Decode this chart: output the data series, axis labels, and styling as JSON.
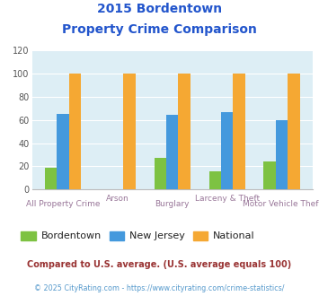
{
  "title_line1": "2015 Bordentown",
  "title_line2": "Property Crime Comparison",
  "categories": [
    "All Property Crime",
    "Arson",
    "Burglary",
    "Larceny & Theft",
    "Motor Vehicle Theft"
  ],
  "bordentown": [
    19,
    0,
    27,
    16,
    24
  ],
  "new_jersey": [
    65,
    0,
    64,
    67,
    60
  ],
  "national": [
    100,
    100,
    100,
    100,
    100
  ],
  "bar_colors": {
    "bordentown": "#7dc242",
    "new_jersey": "#4499dd",
    "national": "#f5a833"
  },
  "ylim": [
    0,
    120
  ],
  "yticks": [
    0,
    20,
    40,
    60,
    80,
    100,
    120
  ],
  "legend_labels": [
    "Bordentown",
    "New Jersey",
    "National"
  ],
  "footnote1": "Compared to U.S. average. (U.S. average equals 100)",
  "footnote2": "© 2025 CityRating.com - https://www.cityrating.com/crime-statistics/",
  "title_color": "#2255cc",
  "footnote1_color": "#993333",
  "footnote2_color": "#5599cc",
  "xlabel_color": "#997799",
  "plot_bg": "#ddeef5",
  "grid_color": "#ffffff",
  "bar_width": 0.22
}
